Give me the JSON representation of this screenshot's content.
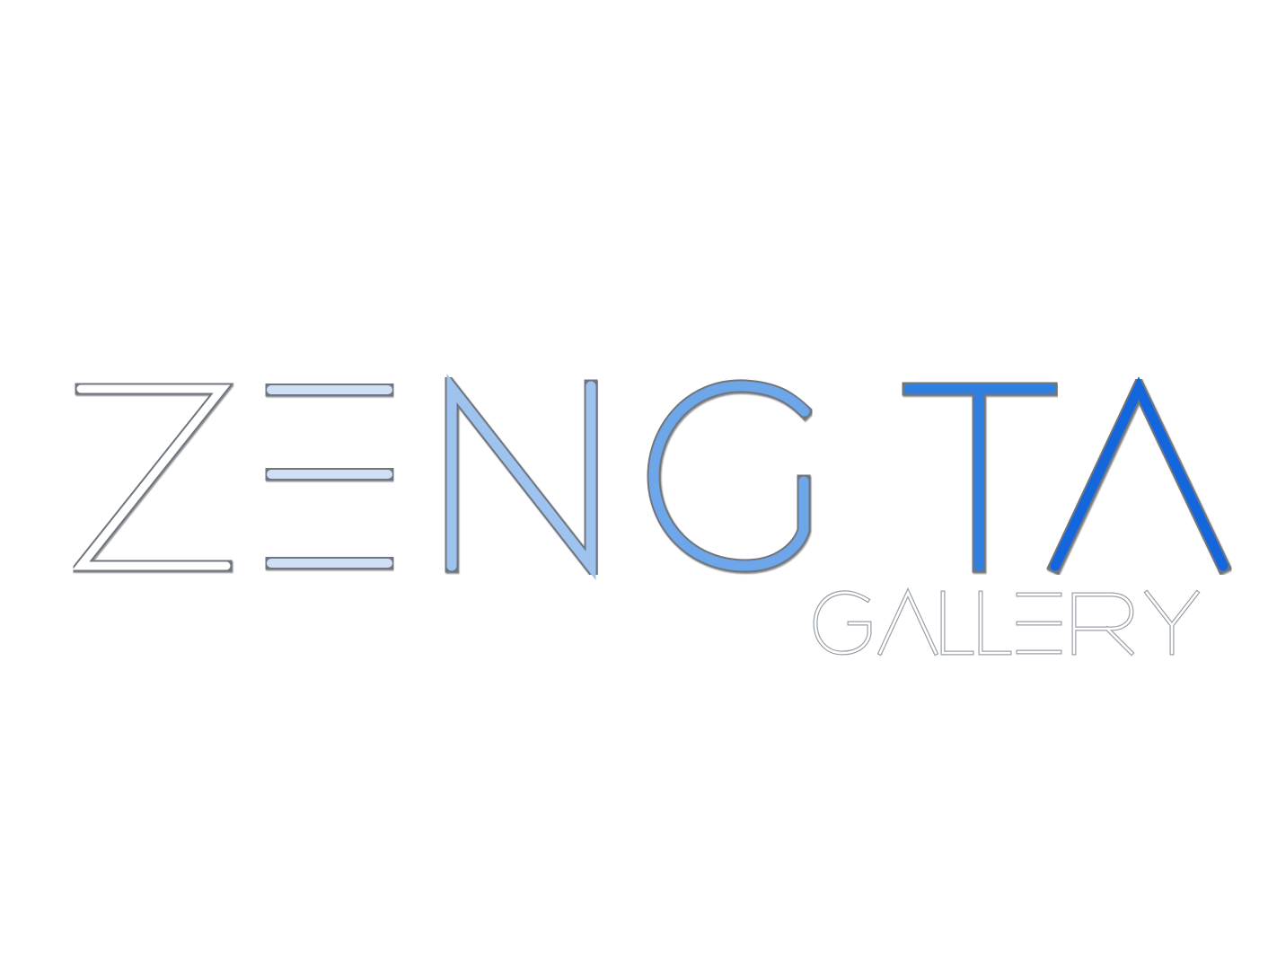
{
  "logo": {
    "name": "ZENG TA",
    "subtitle": "GALLERY"
  },
  "colors": {
    "background": "#ffffff",
    "z": "#ffffff",
    "e": "#cfe0f6",
    "n": "#9ec3ef",
    "g": "#6ea6ea",
    "t": "#2f7fe0",
    "a": "#1466dc",
    "gallery": "#ffffff",
    "outline": "#6f7680"
  }
}
